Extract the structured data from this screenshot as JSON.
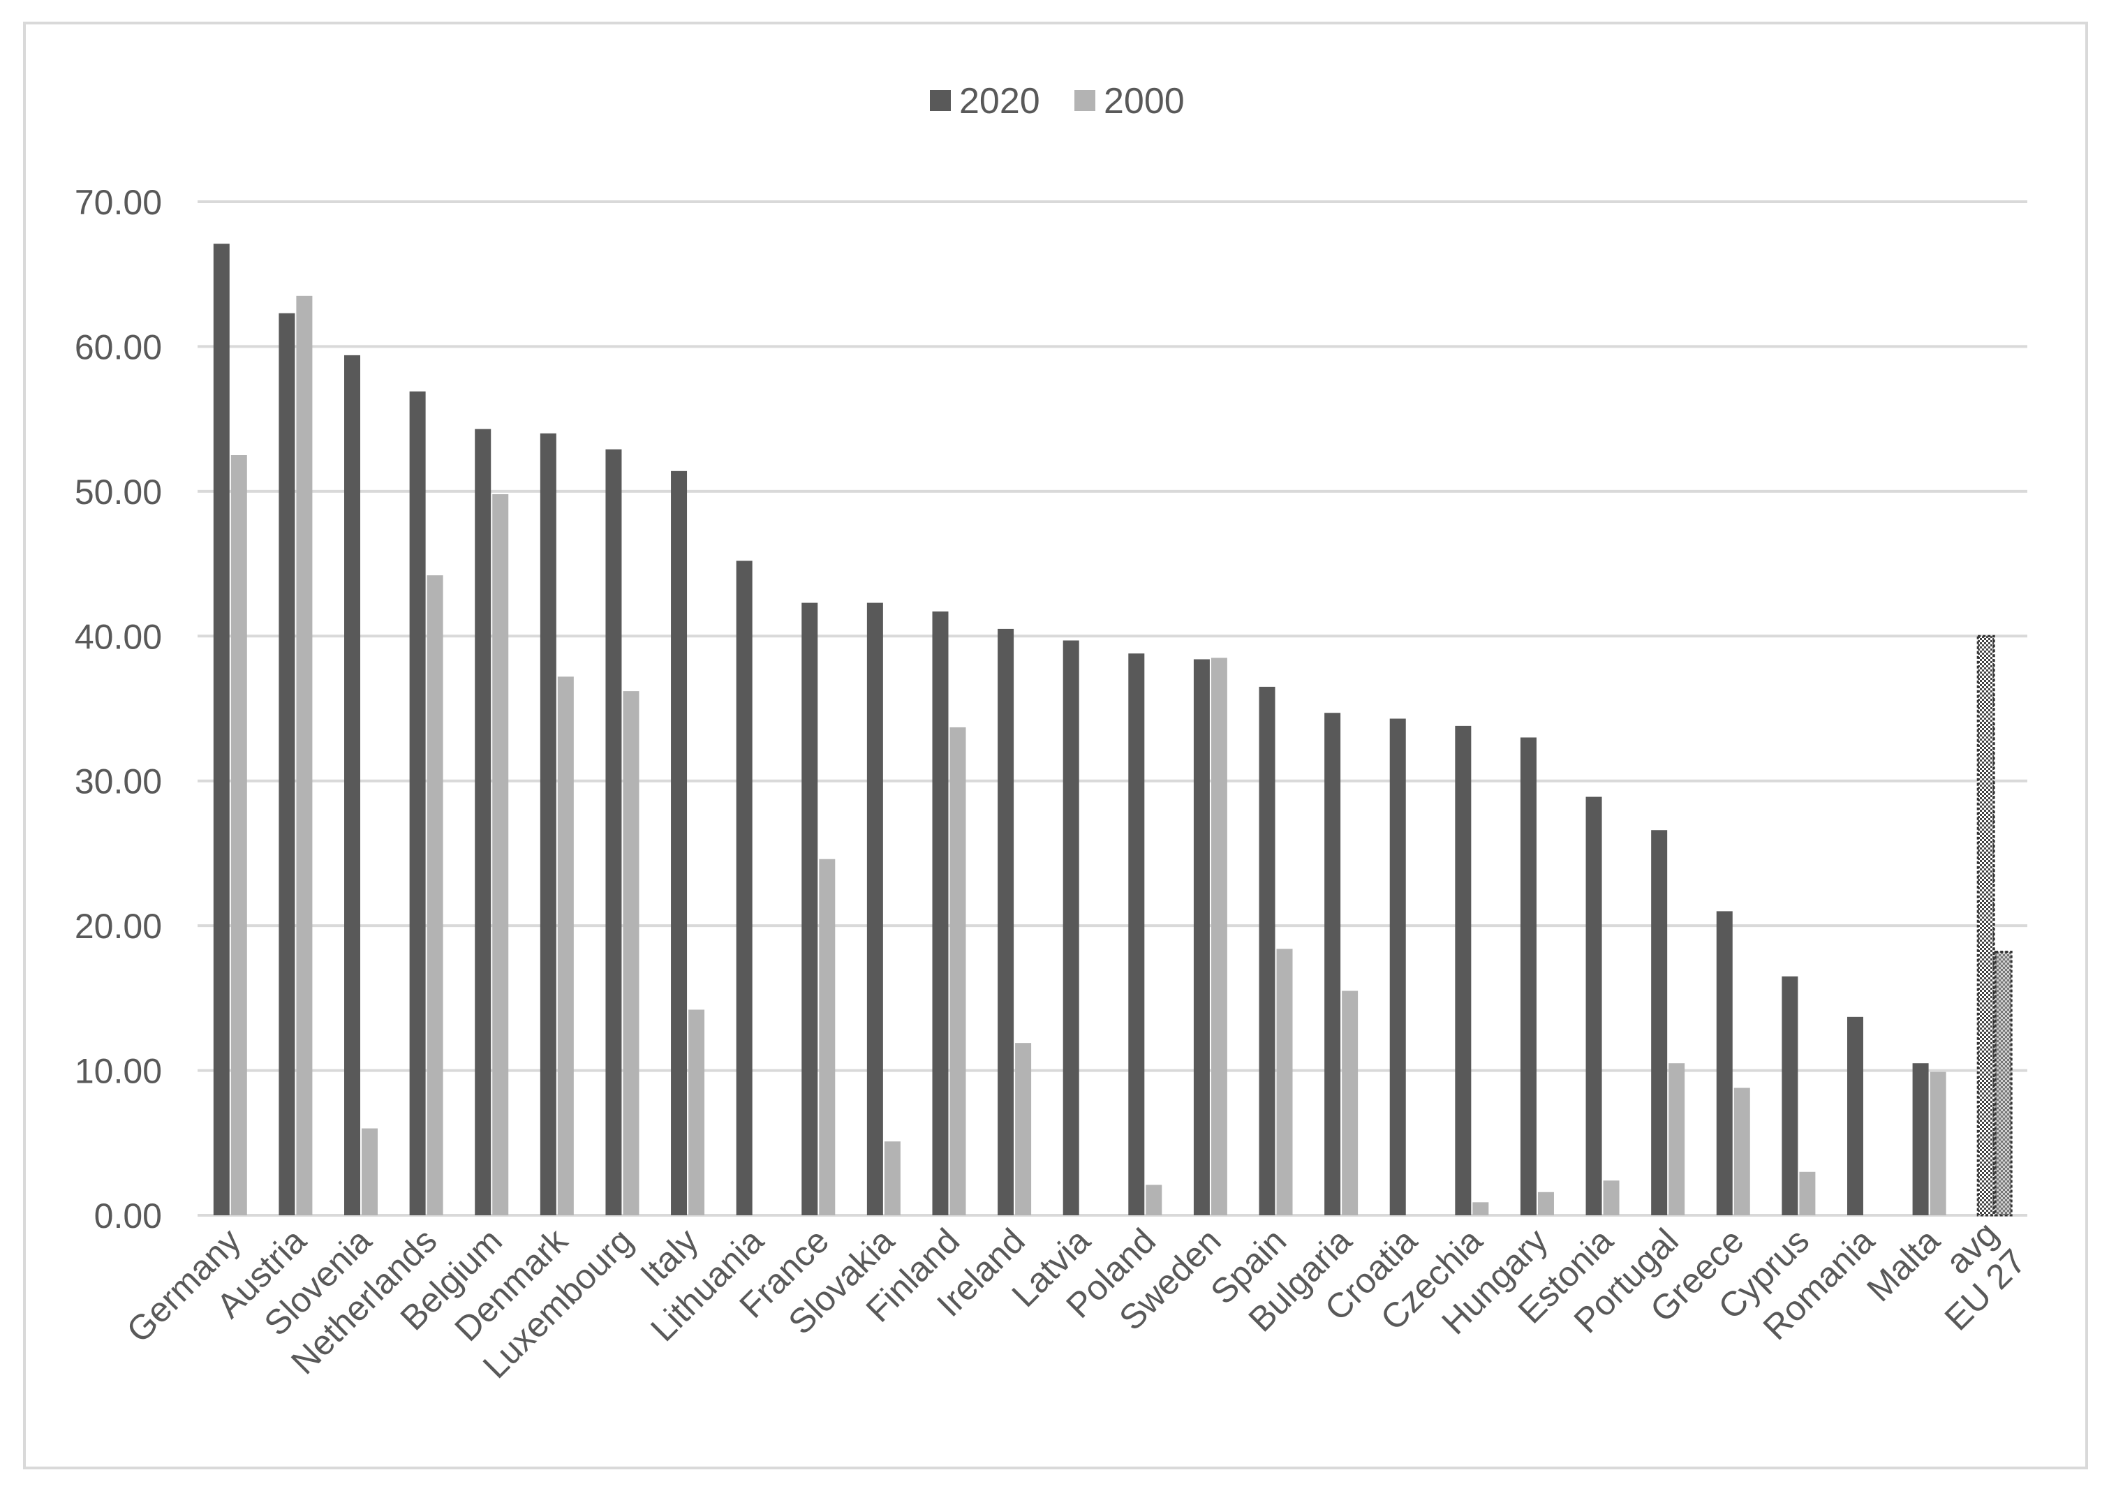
{
  "chart_data": {
    "type": "bar",
    "categories": [
      "Germany",
      "Austria",
      "Slovenia",
      "Netherlands",
      "Belgium",
      "Denmark",
      "Luxembourg",
      "Italy",
      "Lithuania",
      "France",
      "Slovakia",
      "Finland",
      "Ireland",
      "Latvia",
      "Poland",
      "Sweden",
      "Spain",
      "Bulgaria",
      "Croatia",
      "Czechia",
      "Hungary",
      "Estonia",
      "Portugal",
      "Greece",
      "Cyprus",
      "Romania",
      "Malta",
      "avg EU 27"
    ],
    "series": [
      {
        "name": "2020",
        "color": "#595959",
        "values": [
          67.1,
          62.3,
          59.4,
          56.9,
          54.3,
          54.0,
          52.9,
          51.4,
          45.2,
          42.3,
          42.3,
          41.7,
          40.5,
          39.7,
          38.8,
          38.4,
          36.5,
          34.7,
          34.3,
          33.8,
          33.0,
          28.9,
          26.6,
          21.0,
          16.5,
          13.7,
          10.5,
          40.0
        ]
      },
      {
        "name": "2000",
        "color": "#b3b3b3",
        "values": [
          52.5,
          63.5,
          6.0,
          44.2,
          49.8,
          37.2,
          36.2,
          14.2,
          0,
          24.6,
          5.1,
          33.7,
          11.9,
          0,
          2.1,
          38.5,
          18.4,
          15.5,
          0,
          0.9,
          1.6,
          2.4,
          10.5,
          8.8,
          3.0,
          0,
          9.9,
          18.2
        ]
      }
    ],
    "highlight_category": "avg EU 27",
    "ylim": [
      0,
      70
    ],
    "yticks": [
      "0.00",
      "10.00",
      "20.00",
      "30.00",
      "40.00",
      "50.00",
      "60.00",
      "70.00"
    ],
    "grid": true,
    "legend_position": "top-center",
    "title": "",
    "xlabel": "",
    "ylabel": ""
  }
}
